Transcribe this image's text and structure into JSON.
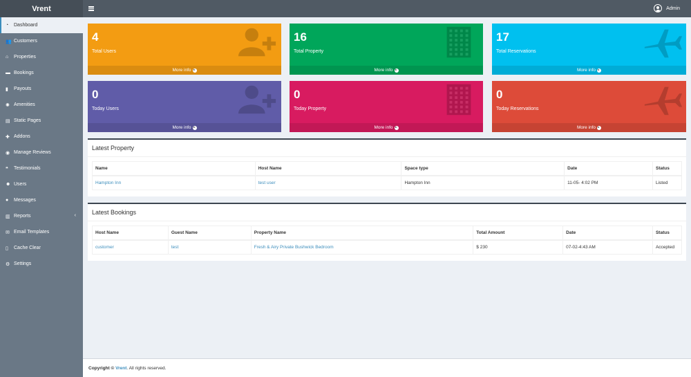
{
  "brand": "Vrent",
  "topbar": {
    "user_name": "Admin"
  },
  "sidebar": {
    "items": [
      {
        "label": "Dashboard",
        "icon": "dashboard-icon"
      },
      {
        "label": "Customers",
        "icon": "users-icon"
      },
      {
        "label": "Properties",
        "icon": "home-icon"
      },
      {
        "label": "Bookings",
        "icon": "cart-icon"
      },
      {
        "label": "Payouts",
        "icon": "money-icon"
      },
      {
        "label": "Amenities",
        "icon": "star-icon"
      },
      {
        "label": "Static Pages",
        "icon": "pages-icon"
      },
      {
        "label": "Addons",
        "icon": "puzzle-icon"
      },
      {
        "label": "Manage Reviews",
        "icon": "eye-icon"
      },
      {
        "label": "Testimonials",
        "icon": "quote-icon"
      },
      {
        "label": "Users",
        "icon": "user-plus-icon"
      },
      {
        "label": "Messages",
        "icon": "chat-icon"
      },
      {
        "label": "Reports",
        "icon": "bar-chart-icon"
      },
      {
        "label": "Email Templates",
        "icon": "envelope-icon"
      },
      {
        "label": "Cache Clear",
        "icon": "trash-icon"
      },
      {
        "label": "Settings",
        "icon": "gears-icon"
      }
    ]
  },
  "stats": [
    {
      "value": "4",
      "label": "Total Users",
      "more": "More info",
      "color": "#f39c12",
      "icon": "user-plus-icon"
    },
    {
      "value": "16",
      "label": "Total Property",
      "more": "More info",
      "color": "#00a65a",
      "icon": "building-icon"
    },
    {
      "value": "17",
      "label": "Total Reservations",
      "more": "More info",
      "color": "#00c0ef",
      "icon": "plane-icon"
    },
    {
      "value": "0",
      "label": "Today Users",
      "more": "More info",
      "color": "#605ca8",
      "icon": "user-plus-icon"
    },
    {
      "value": "0",
      "label": "Today Property",
      "more": "More info",
      "color": "#d81b60",
      "icon": "building-icon"
    },
    {
      "value": "0",
      "label": "Today Reservations",
      "more": "More info",
      "color": "#dd4b39",
      "icon": "plane-icon"
    }
  ],
  "latest_property": {
    "title": "Latest Property",
    "headers": [
      "Name",
      "Host Name",
      "Space type",
      "Date",
      "Status"
    ],
    "rows": [
      [
        "Hampton Inn",
        "test user",
        "Hampton Inn",
        "11-05- 4:02 PM",
        "Listed"
      ]
    ]
  },
  "latest_bookings": {
    "title": "Latest Bookings",
    "headers": [
      "Host Name",
      "Guest Name",
      "Property Name",
      "Total Amount",
      "Date",
      "Status"
    ],
    "rows": [
      [
        "customer",
        "test",
        "Fresh & Airy Private Bushwick Bedroom",
        "$ 230",
        "07-02-4:43 AM",
        "Accepted"
      ]
    ]
  },
  "footer": {
    "copyright": "Copyright ©",
    "brand": "Vrent",
    "rest": ". All rights reserved."
  }
}
